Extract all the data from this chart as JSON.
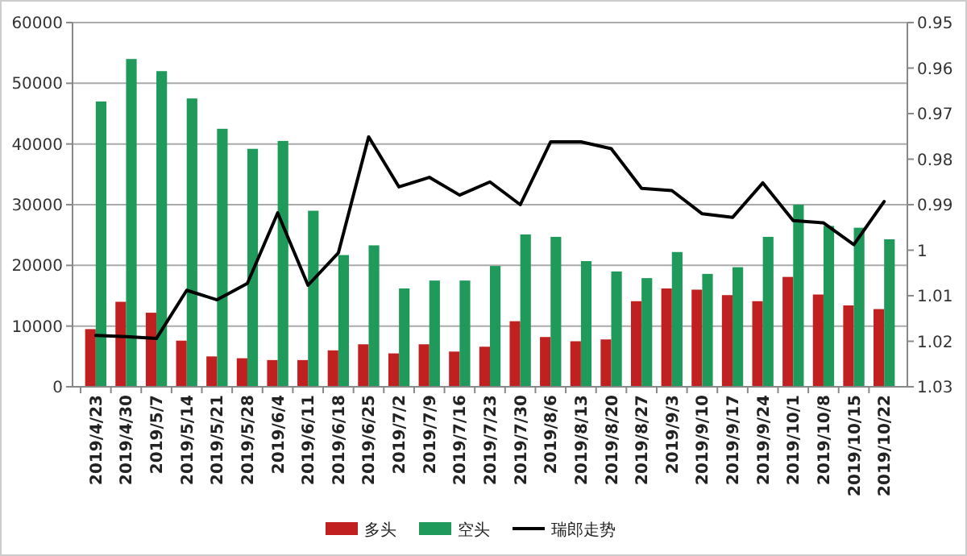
{
  "chart_data": {
    "type": "bar",
    "categories": [
      "2019/4/23",
      "2019/4/30",
      "2019/5/7",
      "2019/5/14",
      "2019/5/21",
      "2019/5/28",
      "2019/6/4",
      "2019/6/11",
      "2019/6/18",
      "2019/6/25",
      "2019/7/2",
      "2019/7/9",
      "2019/7/16",
      "2019/7/23",
      "2019/7/30",
      "2019/8/6",
      "2019/8/13",
      "2019/8/20",
      "2019/8/27",
      "2019/9/3",
      "2019/9/10",
      "2019/9/17",
      "2019/9/24",
      "2019/10/1",
      "2019/10/8",
      "2019/10/15",
      "2019/10/22"
    ],
    "series": [
      {
        "name": "多头",
        "color": "#c0201f",
        "values": [
          9500,
          14000,
          12200,
          7600,
          5000,
          4700,
          4400,
          4400,
          6000,
          7000,
          5500,
          7000,
          5800,
          6600,
          10800,
          8200,
          7500,
          7800,
          14100,
          16200,
          16000,
          15100,
          14100,
          18100,
          15200,
          13400,
          12800
        ]
      },
      {
        "name": "空头",
        "color": "#1f9a5a",
        "values": [
          47000,
          54000,
          52000,
          47500,
          42500,
          39200,
          40500,
          29000,
          21700,
          23300,
          16200,
          17500,
          17500,
          19900,
          25100,
          24700,
          20700,
          19000,
          17900,
          22200,
          18600,
          19700,
          24700,
          30000,
          26500,
          26200,
          24300
        ]
      },
      {
        "name": "瑞郎走势",
        "type": "line",
        "axis": "y2",
        "color": "#000000",
        "values": [
          1.0187,
          1.019,
          1.0194,
          1.0088,
          1.0109,
          1.0073,
          0.9918,
          1.0077,
          1.0006,
          0.9751,
          0.9861,
          0.984,
          0.9879,
          0.985,
          0.99,
          0.9762,
          0.9762,
          0.9777,
          0.9864,
          0.9869,
          0.992,
          0.9928,
          0.9852,
          0.9935,
          0.994,
          0.9988,
          0.9893
        ]
      }
    ],
    "ylim": [
      0,
      60000
    ],
    "yticks": [
      0,
      10000,
      20000,
      30000,
      40000,
      50000,
      60000
    ],
    "y2lim": [
      1.03,
      0.95
    ],
    "y2ticks": [
      0.95,
      0.96,
      0.97,
      0.98,
      0.99,
      1,
      1.01,
      1.02,
      1.03
    ],
    "grid": "y",
    "legend": "bottom"
  }
}
